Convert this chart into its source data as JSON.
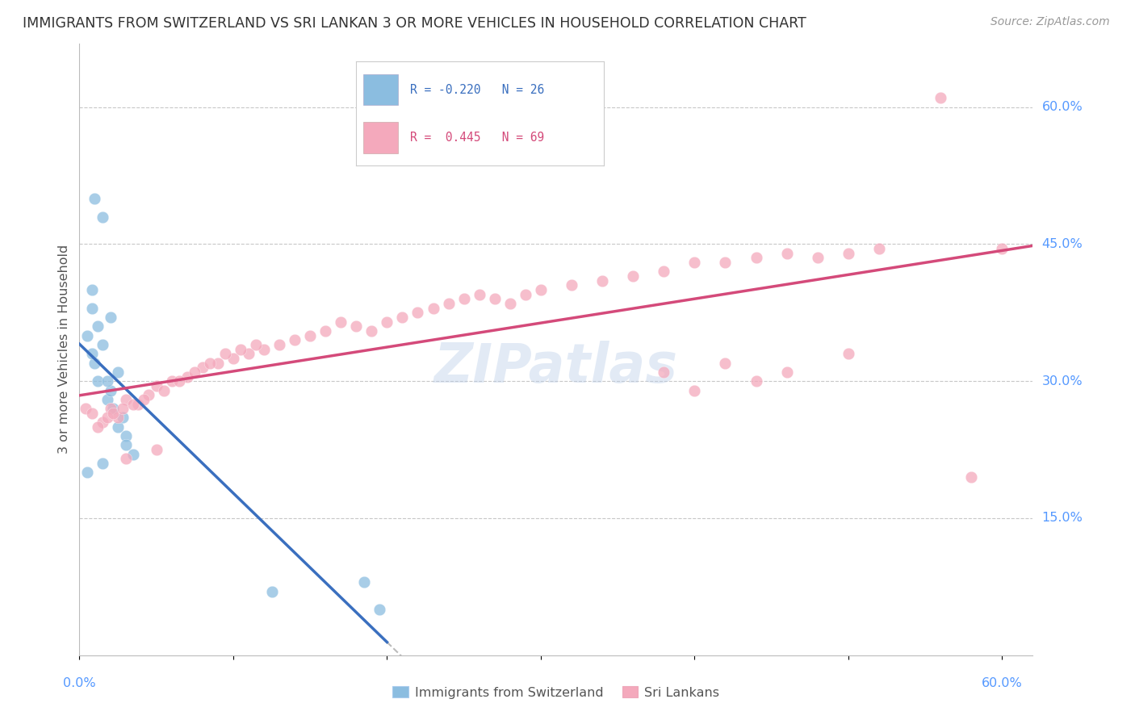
{
  "title": "IMMIGRANTS FROM SWITZERLAND VS SRI LANKAN 3 OR MORE VEHICLES IN HOUSEHOLD CORRELATION CHART",
  "source": "Source: ZipAtlas.com",
  "ylabel": "3 or more Vehicles in Household",
  "color_blue": "#8bbde0",
  "color_pink": "#f4a9bc",
  "color_line_blue": "#3a6fbf",
  "color_line_pink": "#d44a7a",
  "color_line_dashed": "#aaaaaa",
  "background_color": "#ffffff",
  "grid_color": "#c8c8c8",
  "title_color": "#333333",
  "axis_label_color": "#5599ff",
  "watermark_color": "#b8cce8",
  "swiss_x": [
    0.005,
    0.008,
    0.01,
    0.012,
    0.015,
    0.018,
    0.02,
    0.022,
    0.025,
    0.028,
    0.03,
    0.035,
    0.015,
    0.01,
    0.02,
    0.025,
    0.012,
    0.008,
    0.018,
    0.03,
    0.015,
    0.005,
    0.008,
    0.185,
    0.195,
    0.125
  ],
  "swiss_y": [
    0.35,
    0.38,
    0.32,
    0.3,
    0.34,
    0.28,
    0.29,
    0.27,
    0.25,
    0.26,
    0.24,
    0.22,
    0.48,
    0.5,
    0.37,
    0.31,
    0.36,
    0.33,
    0.3,
    0.23,
    0.21,
    0.2,
    0.4,
    0.08,
    0.05,
    0.07
  ],
  "sri_x": [
    0.004,
    0.008,
    0.015,
    0.02,
    0.025,
    0.03,
    0.038,
    0.045,
    0.012,
    0.018,
    0.022,
    0.028,
    0.035,
    0.042,
    0.05,
    0.06,
    0.07,
    0.08,
    0.09,
    0.1,
    0.11,
    0.12,
    0.13,
    0.14,
    0.055,
    0.065,
    0.075,
    0.085,
    0.095,
    0.105,
    0.115,
    0.15,
    0.16,
    0.17,
    0.18,
    0.19,
    0.2,
    0.21,
    0.22,
    0.23,
    0.24,
    0.25,
    0.26,
    0.27,
    0.28,
    0.29,
    0.3,
    0.32,
    0.34,
    0.36,
    0.38,
    0.4,
    0.42,
    0.44,
    0.46,
    0.48,
    0.5,
    0.52,
    0.38,
    0.42,
    0.46,
    0.5,
    0.03,
    0.05,
    0.4,
    0.44,
    0.56,
    0.58,
    0.6
  ],
  "sri_y": [
    0.27,
    0.265,
    0.255,
    0.27,
    0.26,
    0.28,
    0.275,
    0.285,
    0.25,
    0.26,
    0.265,
    0.27,
    0.275,
    0.28,
    0.295,
    0.3,
    0.305,
    0.315,
    0.32,
    0.325,
    0.33,
    0.335,
    0.34,
    0.345,
    0.29,
    0.3,
    0.31,
    0.32,
    0.33,
    0.335,
    0.34,
    0.35,
    0.355,
    0.365,
    0.36,
    0.355,
    0.365,
    0.37,
    0.375,
    0.38,
    0.385,
    0.39,
    0.395,
    0.39,
    0.385,
    0.395,
    0.4,
    0.405,
    0.41,
    0.415,
    0.42,
    0.43,
    0.43,
    0.435,
    0.44,
    0.435,
    0.44,
    0.445,
    0.31,
    0.32,
    0.31,
    0.33,
    0.215,
    0.225,
    0.29,
    0.3,
    0.61,
    0.195,
    0.445
  ],
  "xmin": 0.0,
  "xmax": 0.62,
  "ymin": 0.0,
  "ymax": 0.67,
  "yticks": [
    0.15,
    0.3,
    0.45,
    0.6
  ],
  "ytick_labels": [
    "15.0%",
    "30.0%",
    "45.0%",
    "60.0%"
  ]
}
